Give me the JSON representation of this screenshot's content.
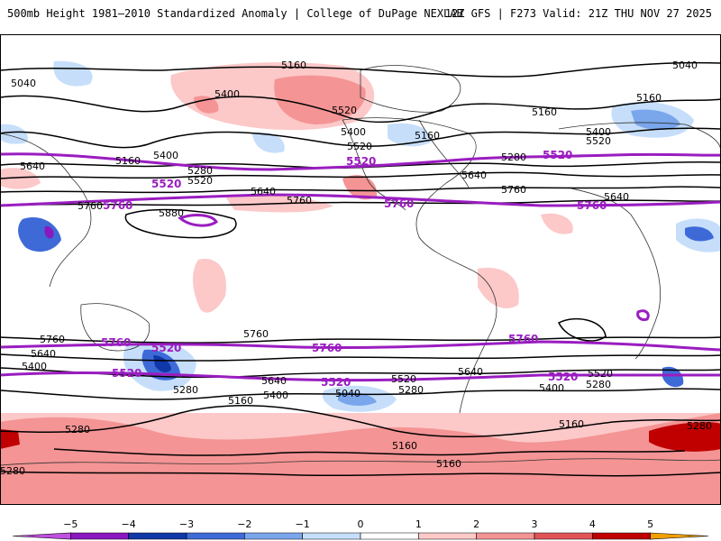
{
  "header": {
    "left": "500mb Height 1981–2010 Standardized Anomaly | College of DuPage NEXLAB",
    "right": "12Z GFS | F273 Valid: 21Z THU NOV 27 2025"
  },
  "contour_labels": [
    {
      "text": "5160"
    },
    {
      "text": "5040"
    },
    {
      "text": "5040"
    },
    {
      "text": "5400"
    },
    {
      "text": "5520"
    },
    {
      "text": "5160"
    },
    {
      "text": "5160"
    },
    {
      "text": "5400"
    },
    {
      "text": "5520"
    },
    {
      "text": "5160"
    },
    {
      "text": "5640"
    },
    {
      "text": "5160"
    },
    {
      "text": "5400"
    },
    {
      "text": "5280"
    },
    {
      "text": "5520"
    },
    {
      "text": "5280"
    },
    {
      "text": "5640"
    },
    {
      "text": "5760"
    },
    {
      "text": "5640"
    },
    {
      "text": "5760"
    },
    {
      "text": "5640"
    },
    {
      "text": "5400"
    },
    {
      "text": "5520"
    },
    {
      "text": "5760"
    },
    {
      "text": "5880"
    },
    {
      "text": "5760"
    },
    {
      "text": "5640"
    },
    {
      "text": "5400"
    },
    {
      "text": "5760"
    },
    {
      "text": "5640"
    },
    {
      "text": "5400"
    },
    {
      "text": "5520"
    },
    {
      "text": "5280"
    },
    {
      "text": "5160"
    },
    {
      "text": "5040"
    },
    {
      "text": "5280"
    },
    {
      "text": "5160"
    },
    {
      "text": "5640"
    },
    {
      "text": "5400"
    },
    {
      "text": "5520"
    },
    {
      "text": "5280"
    },
    {
      "text": "5160"
    },
    {
      "text": "5280"
    },
    {
      "text": "5280"
    },
    {
      "text": "5160"
    },
    {
      "text": "5160"
    },
    {
      "text": "5280"
    }
  ],
  "highlight_labels": [
    {
      "text": "5520"
    },
    {
      "text": "5520"
    },
    {
      "text": "5520"
    },
    {
      "text": "5760"
    },
    {
      "text": "5760"
    },
    {
      "text": "5760"
    },
    {
      "text": "5520"
    },
    {
      "text": "5760"
    },
    {
      "text": "5760"
    },
    {
      "text": "5520"
    },
    {
      "text": "5520"
    },
    {
      "text": "5760"
    },
    {
      "text": "5520"
    }
  ],
  "colorbar": {
    "ticks": [
      "−5",
      "−4",
      "−3",
      "−2",
      "−1",
      "0",
      "1",
      "2",
      "3",
      "4",
      "5"
    ],
    "colors": [
      "#c050e0",
      "#8a18c0",
      "#1038a8",
      "#3e6ad8",
      "#7aa6ec",
      "#c6defa",
      "#ffffff",
      "#fcc8c8",
      "#f49494",
      "#e05458",
      "#c00000",
      "#f0a000"
    ]
  },
  "palette": {
    "contour": "#000000",
    "highlight": "#9a1dc0",
    "coast": "#333333"
  }
}
